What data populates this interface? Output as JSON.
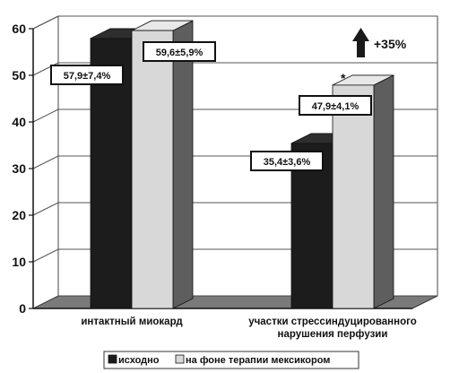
{
  "chart_data": {
    "type": "bar",
    "categories": [
      "интактный миокард",
      "участки стрессиндуцированного нарушения перфузии"
    ],
    "category_lines": [
      [
        "интактный миокард"
      ],
      [
        "участки стрессиндуцированного",
        "нарушения перфузии"
      ]
    ],
    "series": [
      {
        "name": "исходно",
        "values": [
          57.9,
          35.4
        ],
        "labels": [
          "57,9±7,4%",
          "35,4±3,6%"
        ],
        "color": "#1c1c1c"
      },
      {
        "name": "на фоне терапии мексикором",
        "values": [
          59.6,
          47.9
        ],
        "labels": [
          "59,6±5,9%",
          "47,9±4,1%"
        ],
        "color": "#d8d8d8"
      }
    ],
    "ylim": [
      0,
      60
    ],
    "yticks": [
      0,
      10,
      20,
      30,
      40,
      50,
      60
    ],
    "grid": true,
    "legend_position": "bottom",
    "annotations": {
      "asterisk": "*",
      "change_label": "+35%"
    },
    "title": "",
    "xlabel": "",
    "ylabel": ""
  }
}
